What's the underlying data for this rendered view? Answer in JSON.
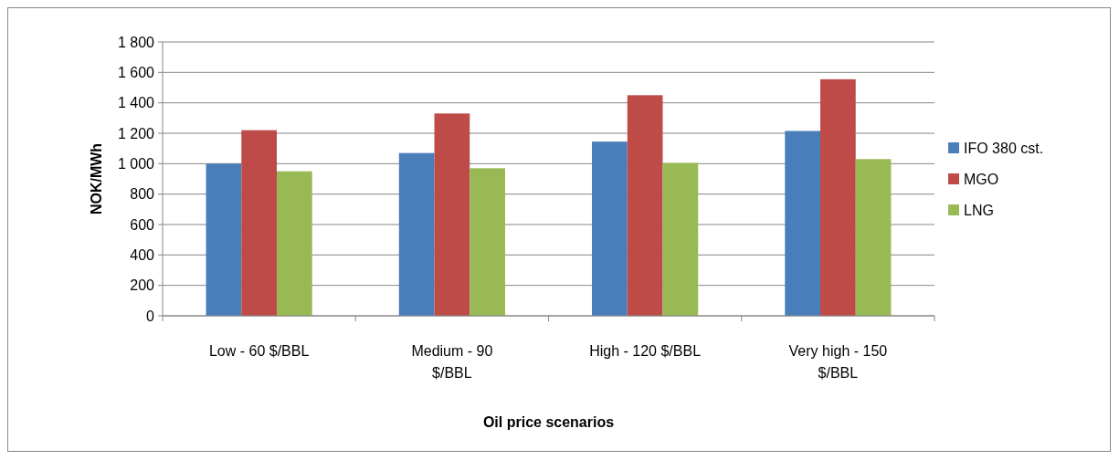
{
  "chart_data": {
    "type": "bar",
    "xlabel": "Oil price scenarios",
    "ylabel": "NOK/MWh",
    "categories": [
      "Low - 60 $/BBL",
      "Medium - 90 $/BBL",
      "High - 120 $/BBL",
      "Very high - 150 $/BBL"
    ],
    "series": [
      {
        "name": "IFO 380 cst.",
        "color": "#4a7ebb",
        "values": [
          1000,
          1070,
          1145,
          1215
        ]
      },
      {
        "name": "MGO",
        "color": "#be4b48",
        "values": [
          1220,
          1330,
          1450,
          1555
        ]
      },
      {
        "name": "LNG",
        "color": "#98b954",
        "values": [
          950,
          970,
          1005,
          1030
        ]
      }
    ],
    "ylim": [
      0,
      1800
    ],
    "yticks": [
      0,
      200,
      400,
      600,
      800,
      {
        "value": 1000,
        "label": "1 000"
      },
      {
        "value": 1200,
        "label": "1 200"
      },
      {
        "value": 1400,
        "label": "1 400"
      },
      {
        "value": 1600,
        "label": "1 600"
      },
      {
        "value": 1800,
        "label": "1 800"
      }
    ],
    "grid": "y",
    "legend": "right"
  }
}
